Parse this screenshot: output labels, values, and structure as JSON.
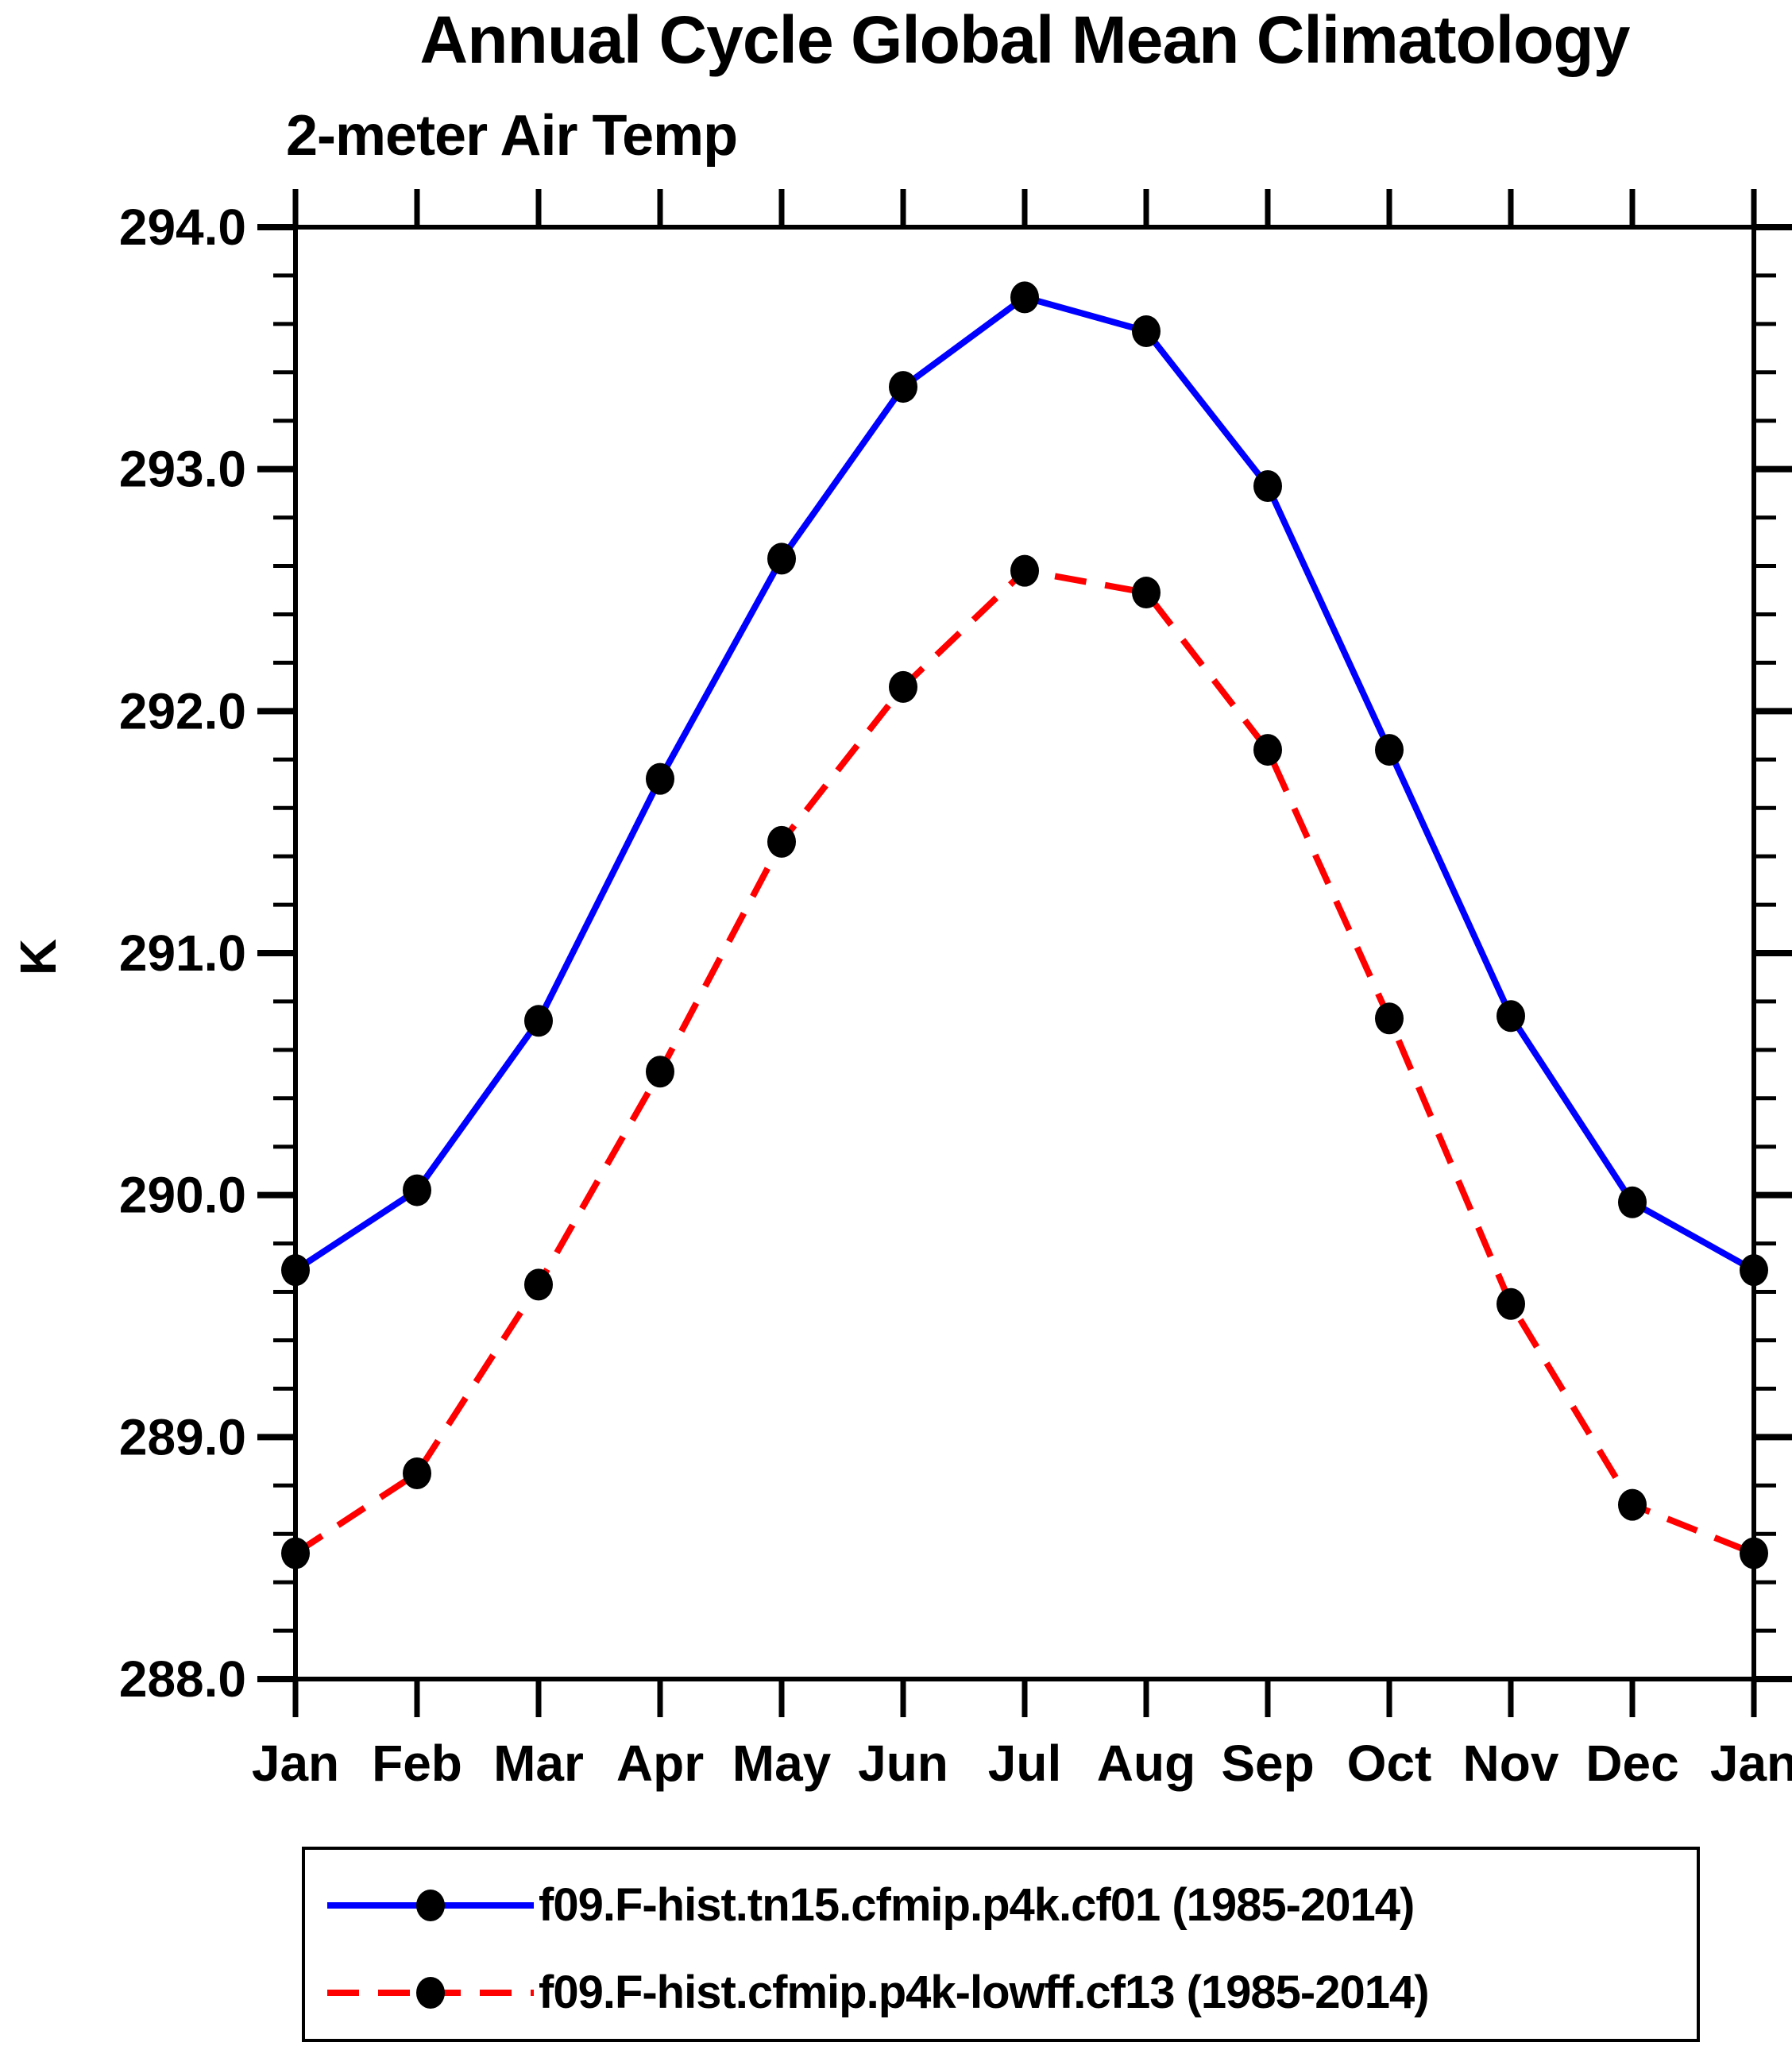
{
  "chart_data": {
    "type": "line",
    "title": "Annual Cycle Global Mean Climatology",
    "subtitle": "2-meter Air Temp",
    "ylabel": "K",
    "xlabel": "",
    "ylim": [
      288.0,
      294.0
    ],
    "ytick_step": 1.0,
    "yminor_step": 0.2,
    "ytick_labels": [
      "288.0",
      "289.0",
      "290.0",
      "291.0",
      "292.0",
      "293.0",
      "294.0"
    ],
    "categories": [
      "Jan",
      "Feb",
      "Mar",
      "Apr",
      "May",
      "Jun",
      "Jul",
      "Aug",
      "Sep",
      "Oct",
      "Nov",
      "Dec",
      "Jan"
    ],
    "grid": false,
    "legend_position": "bottom",
    "marker": "filled-circle",
    "marker_color": "#000000",
    "series": [
      {
        "name": "f09.F-hist.tn15.cfmip.p4k.cf01 (1985-2014)",
        "color": "#0000ff",
        "style": "solid",
        "values": [
          289.69,
          290.02,
          290.72,
          291.72,
          292.63,
          293.34,
          293.71,
          293.57,
          292.93,
          291.84,
          290.74,
          289.97,
          289.69
        ]
      },
      {
        "name": "f09.F-hist.cfmip.p4k-lowff.cf13 (1985-2014)",
        "color": "#ff0000",
        "style": "dashed",
        "values": [
          288.52,
          288.85,
          289.63,
          290.51,
          291.46,
          292.1,
          292.58,
          292.49,
          291.84,
          290.73,
          289.55,
          288.72,
          288.52
        ]
      }
    ]
  },
  "colors": {
    "axis": "#000000",
    "text": "#000000",
    "background": "#ffffff"
  }
}
